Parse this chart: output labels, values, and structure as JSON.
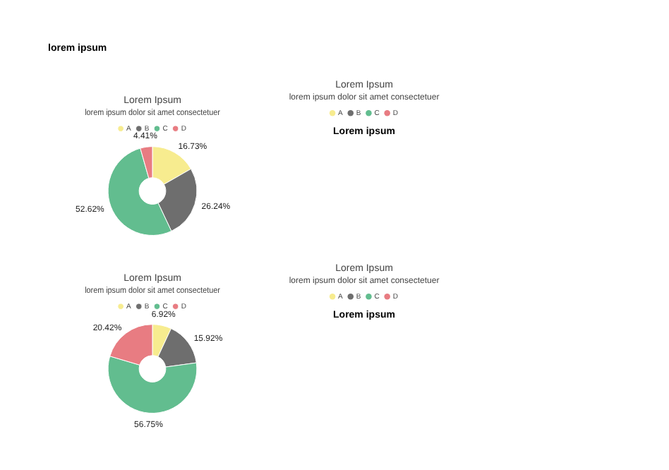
{
  "chart_data": [
    {
      "type": "donut",
      "title": "Lorem Ipsum",
      "subtitle": "lorem ipsum dolor sit amet consectetuer",
      "categories": [
        "A",
        "B",
        "C",
        "D"
      ],
      "values": [
        16.73,
        26.24,
        52.62,
        4.41
      ],
      "value_labels": [
        "16.73%",
        "26.24%",
        "52.62%",
        "4.41%"
      ],
      "colors": [
        "#f7ec8f",
        "#6e6e6e",
        "#62bd8f",
        "#e87c82"
      ],
      "legend": "top",
      "annotations": [
        "lorem ipsum"
      ]
    },
    {
      "type": "other",
      "title": "Lorem Ipsum",
      "subtitle": "lorem ipsum dolor sit amet consectetuer",
      "categories": [
        "A",
        "B",
        "C",
        "D"
      ],
      "colors": [
        "#f7ec8f",
        "#6e6e6e",
        "#62bd8f",
        "#e87c82"
      ],
      "annotations": [
        "Lorem ipsum"
      ]
    },
    {
      "type": "donut",
      "title": "Lorem Ipsum",
      "subtitle": "lorem ipsum dolor sit amet consectetuer",
      "categories": [
        "A",
        "B",
        "C",
        "D"
      ],
      "values": [
        6.92,
        15.92,
        56.75,
        20.42
      ],
      "value_labels": [
        "6.92%",
        "15.92%",
        "56.75%",
        "20.42%"
      ],
      "colors": [
        "#f7ec8f",
        "#6e6e6e",
        "#62bd8f",
        "#e87c82"
      ],
      "legend": "top"
    },
    {
      "type": "other",
      "title": "Lorem Ipsum",
      "subtitle": "lorem ipsum dolor sit amet consectetuer",
      "categories": [
        "A",
        "B",
        "C",
        "D"
      ],
      "colors": [
        "#f7ec8f",
        "#6e6e6e",
        "#62bd8f",
        "#e87c82"
      ],
      "annotations": [
        "Lorem ipsum"
      ]
    }
  ]
}
